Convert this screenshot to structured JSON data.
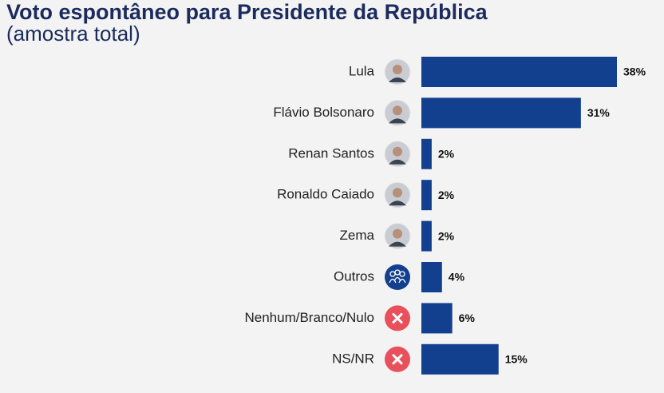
{
  "chart_data": {
    "type": "bar",
    "orientation": "horizontal",
    "title": "Voto espontâneo para Presidente da República",
    "subtitle": "(amostra total)",
    "categories": [
      "Lula",
      "Flávio Bolsonaro",
      "Renan Santos",
      "Ronaldo Caiado",
      "Zema",
      "Outros",
      "Nenhum/Branco/Nulo",
      "NS/NR"
    ],
    "values": [
      38,
      31,
      2,
      2,
      2,
      4,
      6,
      15
    ],
    "value_labels": [
      "38%",
      "31%",
      "2%",
      "2%",
      "2%",
      "4%",
      "6%",
      "15%"
    ],
    "color": "#123f8e"
  }
}
